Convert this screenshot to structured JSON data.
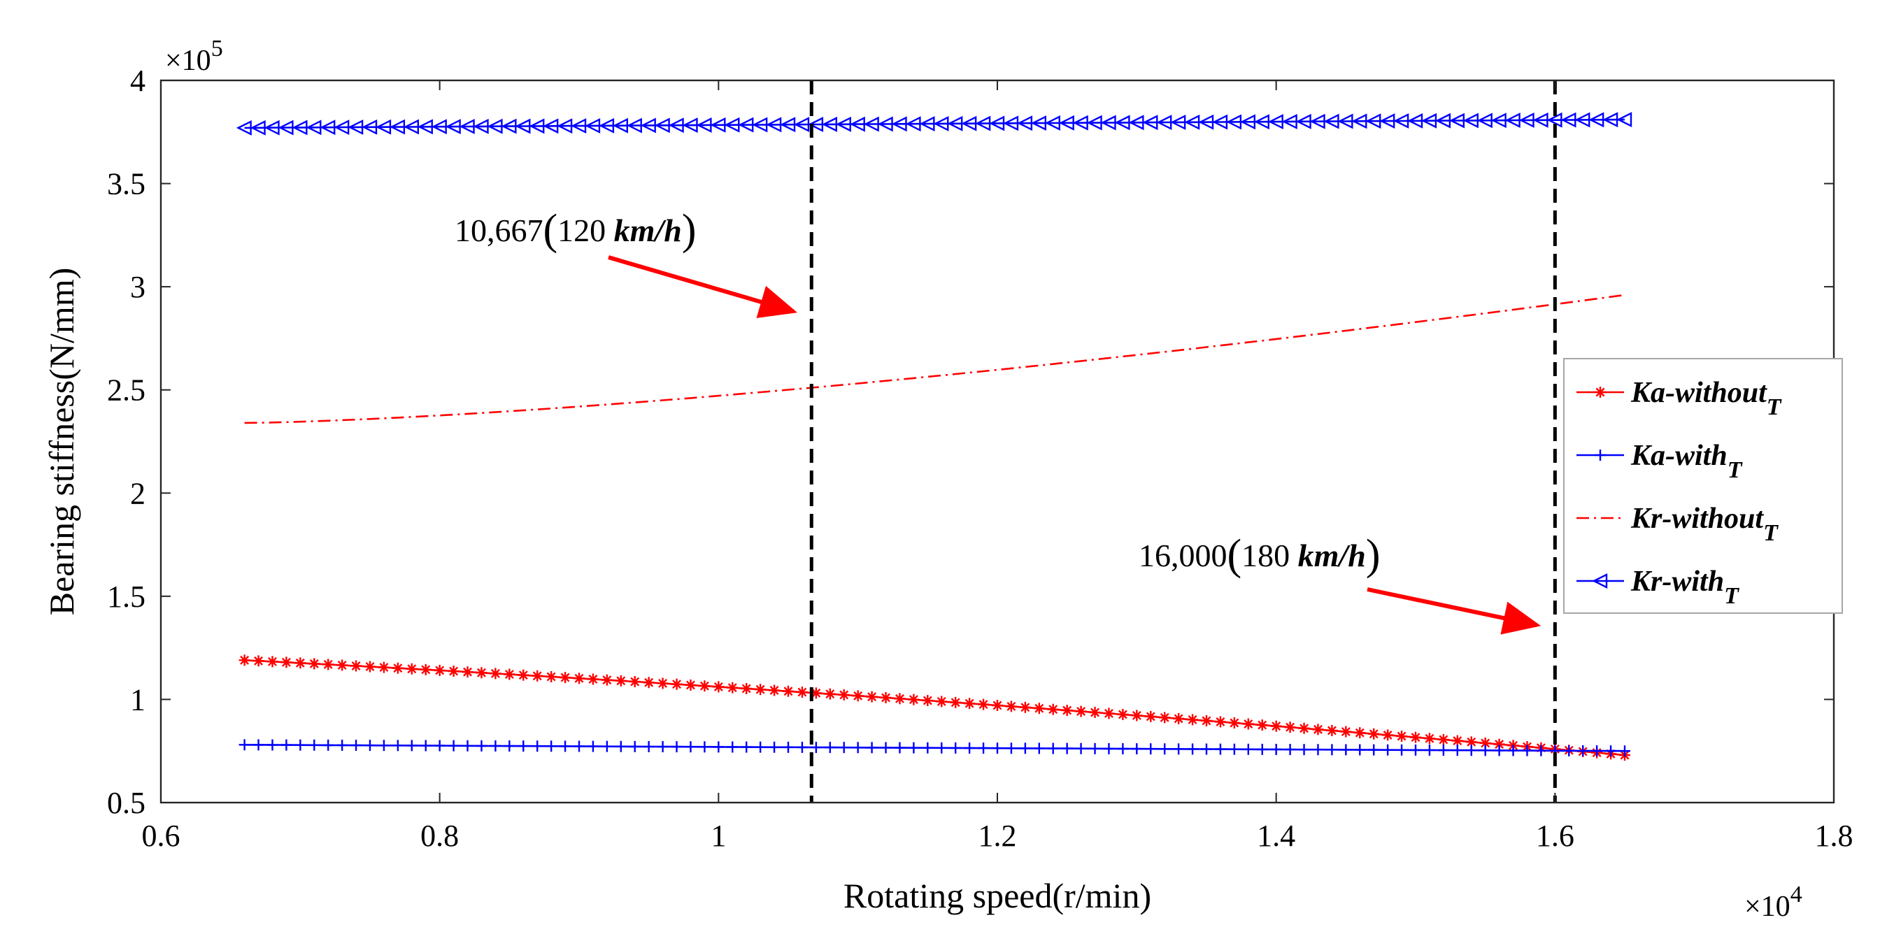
{
  "chart_data": {
    "type": "line",
    "xlabel": "Rotating speed(r/min)",
    "ylabel": "Bearing stiffness(N/mm)",
    "x_multiplier": "×10",
    "x_multiplier_exp": "4",
    "y_multiplier": "×10",
    "y_multiplier_exp": "5",
    "xlim": [
      0.6,
      1.8
    ],
    "ylim": [
      0.5,
      4
    ],
    "xticks": [
      "0.6",
      "0.8",
      "1",
      "1.2",
      "1.4",
      "1.6",
      "1.8"
    ],
    "yticks": [
      "0.5",
      "1",
      "1.5",
      "2",
      "2.5",
      "3",
      "3.5",
      "4"
    ],
    "x_range": [
      0.66,
      1.65
    ],
    "points_per_series": 100,
    "legend_position": "right",
    "series": [
      {
        "name": "Ka-without",
        "subscript": "T",
        "color": "#ff0000",
        "line": "solid",
        "marker": "asterisk",
        "start": 1.19,
        "end": 0.73,
        "curve": "concave-down"
      },
      {
        "name": "Ka-with",
        "subscript": "T",
        "color": "#0000ff",
        "line": "solid",
        "marker": "plus",
        "start": 0.78,
        "end": 0.75,
        "curve": "linear"
      },
      {
        "name": "Kr-without",
        "subscript": "T",
        "color": "#ff0000",
        "line": "dashdot",
        "marker": "none",
        "start": 2.34,
        "end": 2.96,
        "curve": "concave-up"
      },
      {
        "name": "Kr-with",
        "subscript": "T",
        "color": "#0000ff",
        "line": "solid",
        "marker": "triangle-left",
        "start": 3.77,
        "end": 3.81,
        "curve": "linear"
      }
    ],
    "vlines": [
      {
        "x": 1.0667,
        "style": "dashed",
        "color": "#000000"
      },
      {
        "x": 1.6,
        "style": "dashed",
        "color": "#000000"
      }
    ],
    "annotations": [
      {
        "number": "10,667",
        "speed": "120",
        "unit": "km/h",
        "target_x": 1.0667,
        "target_y": 2.85,
        "arrow_color": "#ff0000",
        "text_anchor": "left-above"
      },
      {
        "number": "16,000",
        "speed": "180",
        "unit": "km/h",
        "target_x": 1.6,
        "target_y": 1.33,
        "arrow_color": "#ff0000",
        "text_anchor": "left-above"
      }
    ]
  }
}
